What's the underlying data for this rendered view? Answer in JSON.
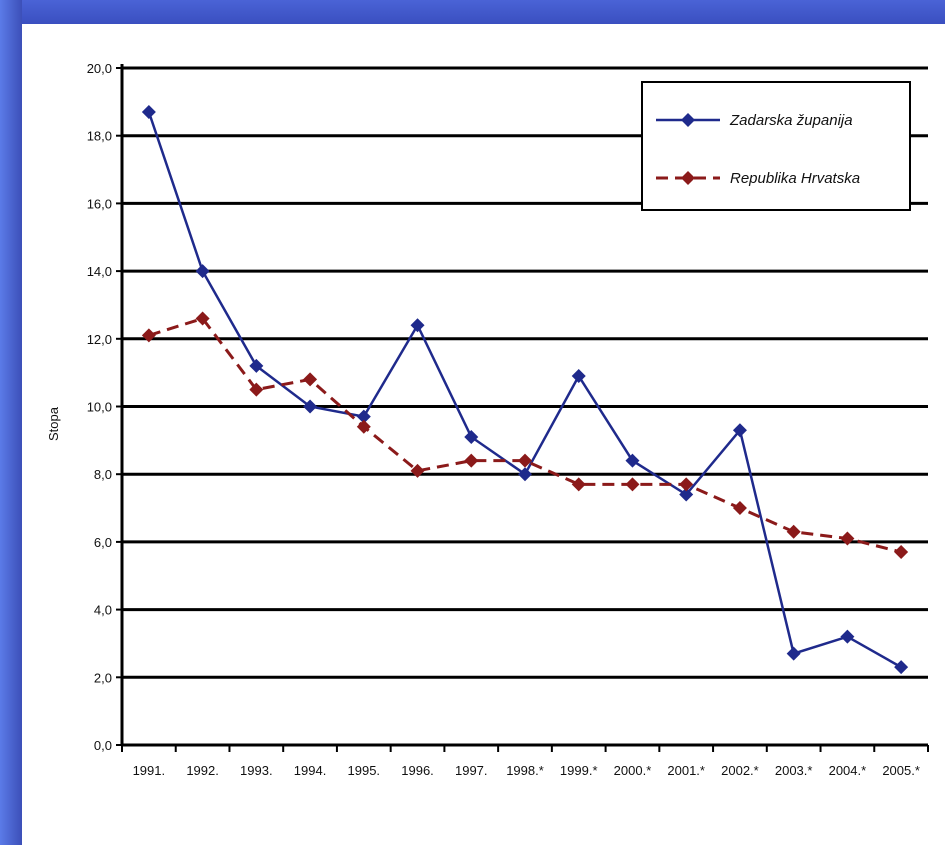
{
  "chart_data": {
    "type": "line",
    "title": "",
    "xlabel": "",
    "ylabel": "Stopa",
    "x": [
      "1991.",
      "1992.",
      "1993.",
      "1994.",
      "1995.",
      "1996.",
      "1997.",
      "1998.*",
      "1999.*",
      "2000.*",
      "2001.*",
      "2002.*",
      "2003.*",
      "2004.*",
      "2005.*"
    ],
    "ylim": [
      0,
      20
    ],
    "yticks": [
      "0,0",
      "2,0",
      "4,0",
      "6,0",
      "8,0",
      "10,0",
      "12,0",
      "14,0",
      "16,0",
      "18,0",
      "20,0"
    ],
    "grid": true,
    "legend": "top-right",
    "series": [
      {
        "name": "Zadarska županija",
        "color": "#1f2a8c",
        "style": "solid",
        "values": [
          18.7,
          14.0,
          11.2,
          10.0,
          9.7,
          12.4,
          9.1,
          8.0,
          10.9,
          8.4,
          7.4,
          9.3,
          2.7,
          3.2,
          2.3
        ]
      },
      {
        "name": "Republika Hrvatska",
        "color": "#8b1a1a",
        "style": "dashed",
        "values": [
          12.1,
          12.6,
          10.5,
          10.8,
          9.4,
          8.1,
          8.4,
          8.4,
          7.7,
          7.7,
          7.7,
          7.0,
          6.3,
          6.1,
          5.7
        ]
      }
    ]
  }
}
